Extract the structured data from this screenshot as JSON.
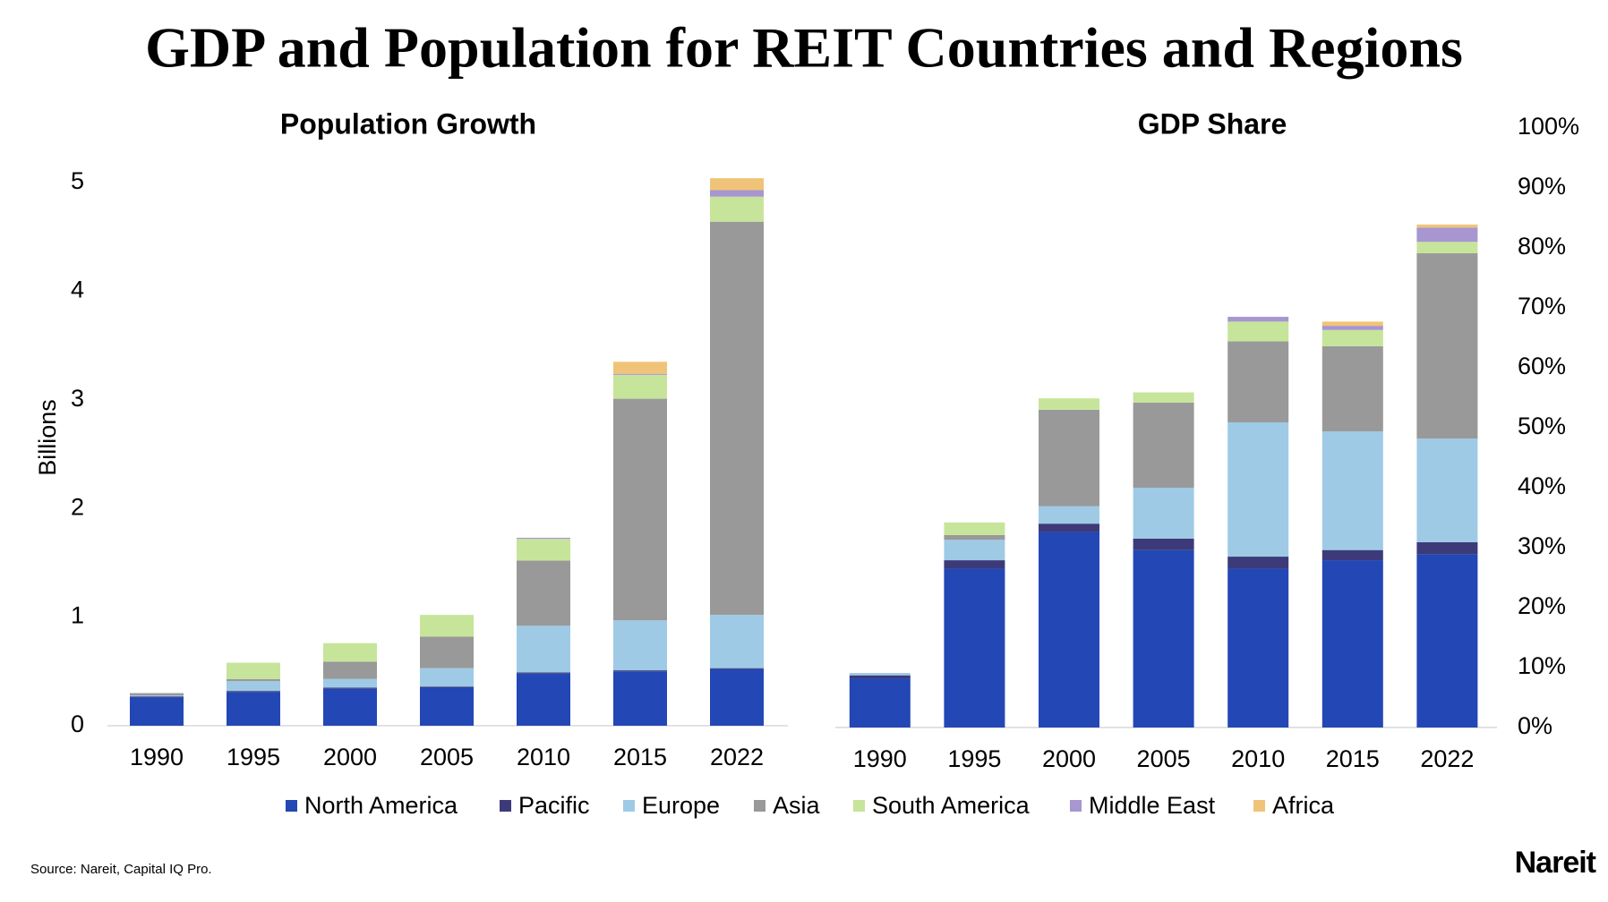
{
  "title": "GDP and Population for REIT Countries and Regions",
  "source": "Source: Nareit, Capital IQ Pro.",
  "logo": "Nareit",
  "chart_data": [
    {
      "type": "stacked_bar",
      "title": "Population Growth",
      "y_label": "Billions",
      "categories": [
        "1990",
        "1995",
        "2000",
        "2005",
        "2010",
        "2015",
        "2022"
      ],
      "ylim": [
        0,
        5
      ],
      "yticks": [
        0,
        1,
        2,
        3,
        4,
        5
      ],
      "series": [
        {
          "name": "North America",
          "color": "#2347b5",
          "values": [
            0.26,
            0.31,
            0.34,
            0.35,
            0.48,
            0.5,
            0.52
          ]
        },
        {
          "name": "Pacific",
          "color": "#3d3a7a",
          "values": [
            0.01,
            0.01,
            0.01,
            0.01,
            0.01,
            0.01,
            0.01
          ]
        },
        {
          "name": "Europe",
          "color": "#9ecae6",
          "values": [
            0.01,
            0.09,
            0.08,
            0.17,
            0.43,
            0.46,
            0.49
          ]
        },
        {
          "name": "Asia",
          "color": "#999999",
          "values": [
            0.02,
            0.02,
            0.16,
            0.29,
            0.6,
            2.04,
            3.62
          ]
        },
        {
          "name": "South America",
          "color": "#c6e59a",
          "values": [
            0,
            0.15,
            0.17,
            0.2,
            0.2,
            0.22,
            0.23
          ]
        },
        {
          "name": "Middle East",
          "color": "#a796d0",
          "values": [
            0,
            0,
            0,
            0,
            0.01,
            0.01,
            0.06
          ]
        },
        {
          "name": "Africa",
          "color": "#f0c478",
          "values": [
            0,
            0,
            0,
            0,
            0,
            0.11,
            0.11
          ]
        }
      ]
    },
    {
      "type": "stacked_bar",
      "title": "GDP Share",
      "categories": [
        "1990",
        "1995",
        "2000",
        "2005",
        "2010",
        "2015",
        "2022"
      ],
      "ylim": [
        0,
        100
      ],
      "yticks": [
        {
          "value": 0,
          "label": "0%"
        },
        {
          "value": 10,
          "label": "10%"
        },
        {
          "value": 20,
          "label": "20%"
        },
        {
          "value": 30,
          "label": "30%"
        },
        {
          "value": 40,
          "label": "40%"
        },
        {
          "value": 50,
          "label": "50%"
        },
        {
          "value": 60,
          "label": "60%"
        },
        {
          "value": 70,
          "label": "70%"
        },
        {
          "value": 80,
          "label": "80%"
        },
        {
          "value": 90,
          "label": "90%"
        },
        {
          "value": 100,
          "label": "100%"
        }
      ],
      "series": [
        {
          "name": "North America",
          "color": "#2347b5",
          "values": [
            8.2,
            26.5,
            32.6,
            29.6,
            26.5,
            27.9,
            28.9
          ]
        },
        {
          "name": "Pacific",
          "color": "#3d3a7a",
          "values": [
            0.5,
            1.4,
            1.4,
            1.9,
            2.0,
            1.7,
            2.0
          ]
        },
        {
          "name": "Europe",
          "color": "#9ecae6",
          "values": [
            0.4,
            3.4,
            2.9,
            8.5,
            22.4,
            19.8,
            17.3
          ]
        },
        {
          "name": "Asia",
          "color": "#999999",
          "values": [
            0,
            0.8,
            16.1,
            14.2,
            13.5,
            14.2,
            30.9
          ]
        },
        {
          "name": "South America",
          "color": "#c6e59a",
          "values": [
            0,
            2.1,
            1.9,
            1.7,
            3.3,
            2.7,
            1.9
          ]
        },
        {
          "name": "Middle East",
          "color": "#a796d0",
          "values": [
            0,
            0,
            0,
            0,
            0.8,
            0.7,
            2.4
          ]
        },
        {
          "name": "Africa",
          "color": "#f0c478",
          "values": [
            0,
            0,
            0,
            0,
            0,
            0.7,
            0.5
          ]
        }
      ]
    }
  ]
}
